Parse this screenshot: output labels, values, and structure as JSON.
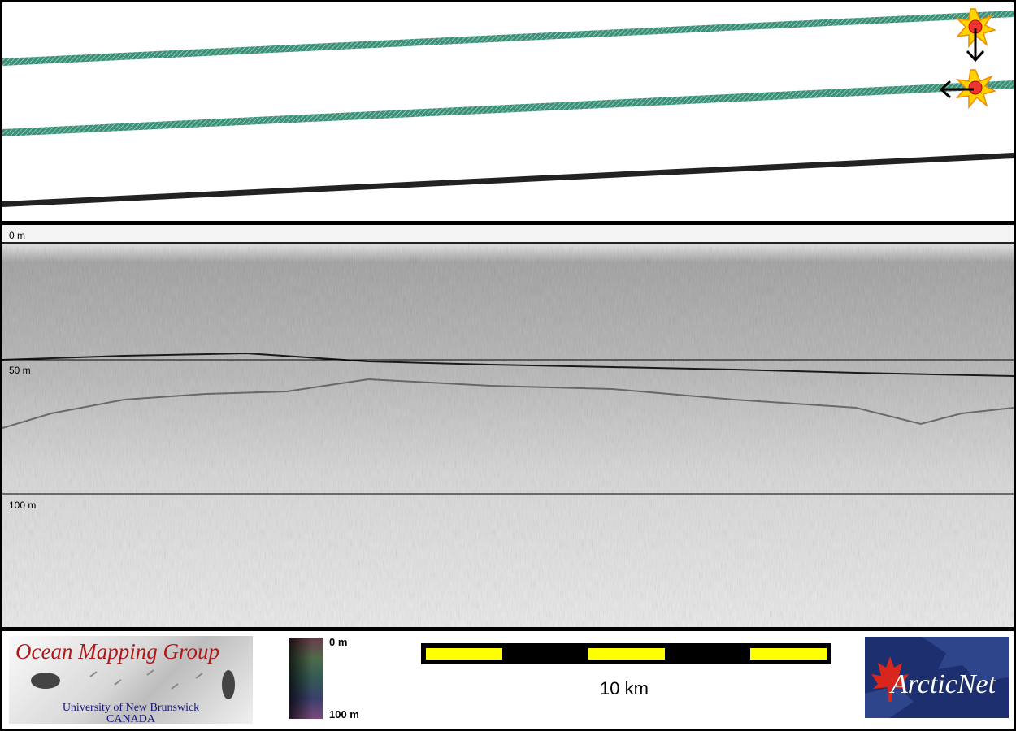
{
  "profile": {
    "depth_labels": [
      "0 m",
      "50 m",
      "100 m"
    ]
  },
  "footer": {
    "omg_logo": {
      "title": "Ocean Mapping Group",
      "university": "University of New Brunswick",
      "country": "CANADA"
    },
    "colorbar": {
      "top_label": "0 m",
      "bottom_label": "100 m"
    },
    "scalebar": {
      "label": "10 km"
    },
    "arcticnet_logo": {
      "text": "ArcticNet"
    }
  },
  "colors": {
    "swath_green": "#3e8f78",
    "track_dark": "#222222",
    "logo_red": "#b01818",
    "logo_blue": "#17177a",
    "scale_yellow": "#ffff00",
    "arcticnet_navy": "#1d2f6e",
    "maple_red": "#d8261c"
  }
}
